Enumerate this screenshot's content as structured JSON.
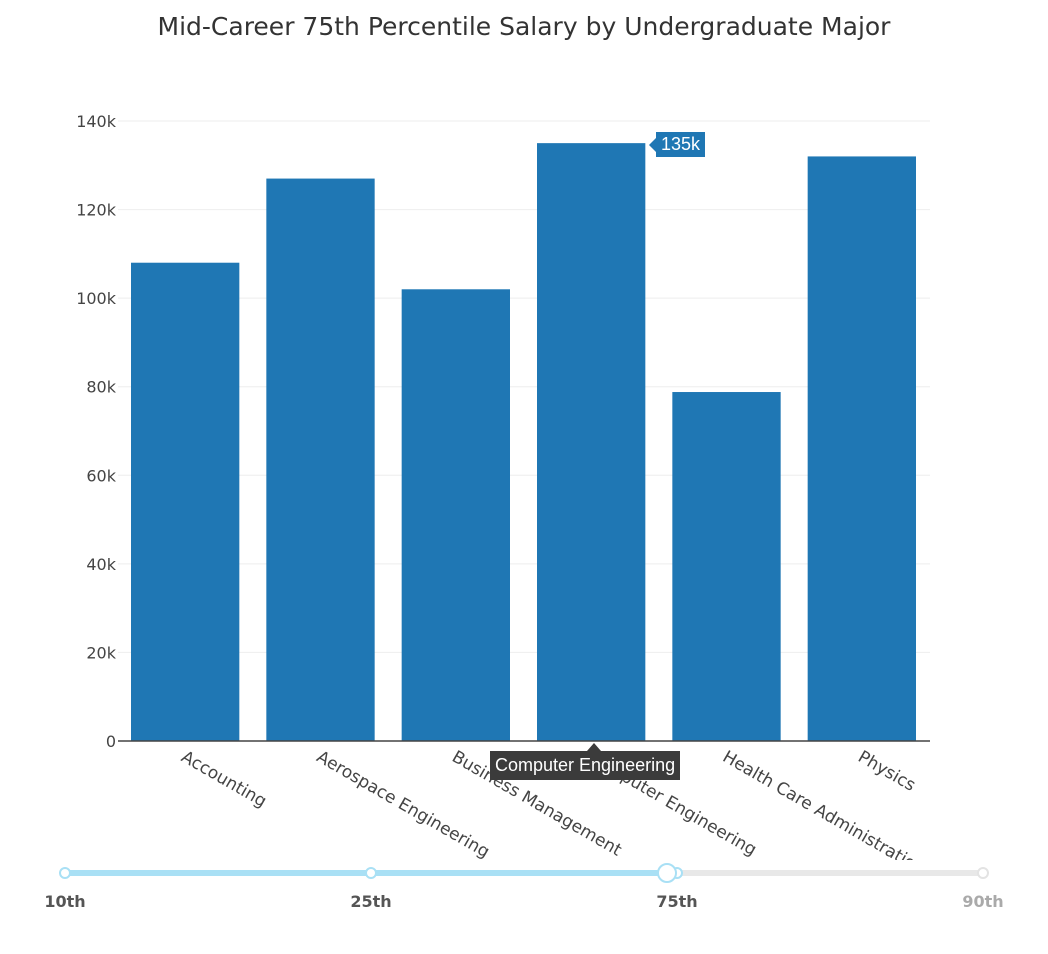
{
  "chart_data": {
    "type": "bar",
    "title": "Mid-Career 75th Percentile Salary by Undergraduate Major",
    "xlabel": "",
    "ylabel": "",
    "categories": [
      "Accounting",
      "Aerospace Engineering",
      "Business Management",
      "Computer Engineering",
      "Health Care Administration",
      "Physics"
    ],
    "values": [
      108000,
      127000,
      102000,
      135000,
      78800,
      132000
    ],
    "ylim": [
      0,
      140000
    ],
    "yticks": [
      0,
      20000,
      40000,
      60000,
      80000,
      100000,
      120000,
      140000
    ],
    "ytick_labels": [
      "0",
      "20k",
      "40k",
      "60k",
      "80k",
      "100k",
      "120k",
      "140k"
    ],
    "bar_color": "#1f77b4",
    "grid": true
  },
  "hover": {
    "category_label": "Computer Engineering",
    "value_label": "135k"
  },
  "slider": {
    "steps": [
      "10th",
      "25th",
      "75th",
      "90th"
    ],
    "active_index": 2,
    "active_color": "#a9e0f5"
  }
}
